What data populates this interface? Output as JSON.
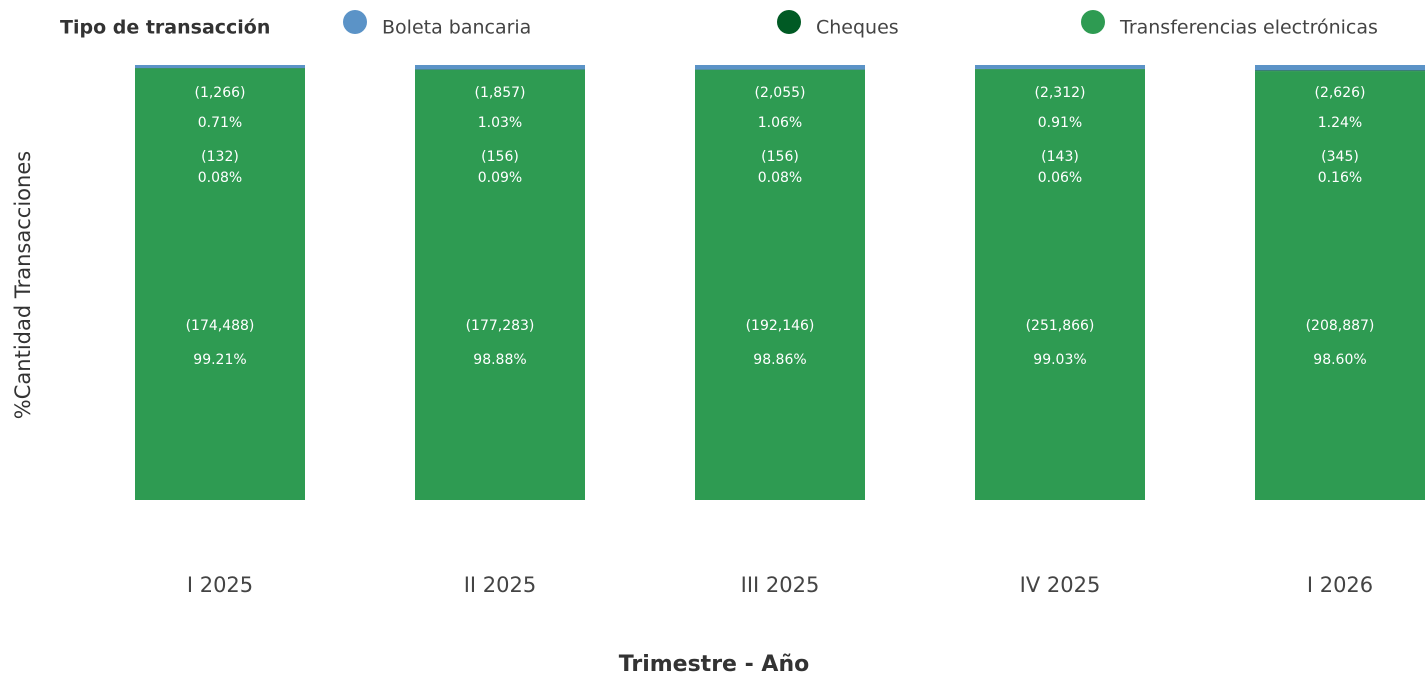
{
  "chart_data": {
    "type": "bar",
    "stacked": true,
    "legend_title": "Tipo de transacción",
    "x_label": "Trimestre - Año",
    "y_label": "%Cantidad Transacciones",
    "legend": "top",
    "categories": [
      "I 2025",
      "II 2025",
      "III 2025",
      "IV 2025",
      "I 2026"
    ],
    "ylim": [
      0,
      100
    ],
    "series": [
      {
        "name": "Transferencias electrónicas",
        "color": "#2e9b52",
        "values": [
          99.21,
          98.88,
          98.86,
          99.03,
          98.6
        ],
        "value_labels": [
          "99.21%",
          "98.88%",
          "98.86%",
          "99.03%",
          "98.60%"
        ],
        "counts": [
          174488,
          177283,
          192146,
          251866,
          208887
        ],
        "count_labels": [
          "(174,488)",
          "(177,283)",
          "(192,146)",
          "(251,866)",
          "(208,887)"
        ]
      },
      {
        "name": "Cheques",
        "color": "#005a24",
        "values": [
          0.08,
          0.09,
          0.08,
          0.06,
          0.16
        ],
        "value_labels": [
          "0.08%",
          "0.09%",
          "0.08%",
          "0.06%",
          "0.16%"
        ],
        "counts": [
          132,
          156,
          156,
          143,
          345
        ],
        "count_labels": [
          "(132)",
          "(156)",
          "(156)",
          "(143)",
          "(345)"
        ]
      },
      {
        "name": "Boleta bancaria",
        "color": "#5b93c7",
        "values": [
          0.71,
          1.03,
          1.06,
          0.91,
          1.24
        ],
        "value_labels": [
          "0.71%",
          "1.03%",
          "1.06%",
          "0.91%",
          "1.24%"
        ],
        "counts": [
          1266,
          1857,
          2055,
          2312,
          2626
        ],
        "count_labels": [
          "(1,266)",
          "(1,857)",
          "(2,055)",
          "(2,312)",
          "(2,626)"
        ]
      }
    ]
  }
}
